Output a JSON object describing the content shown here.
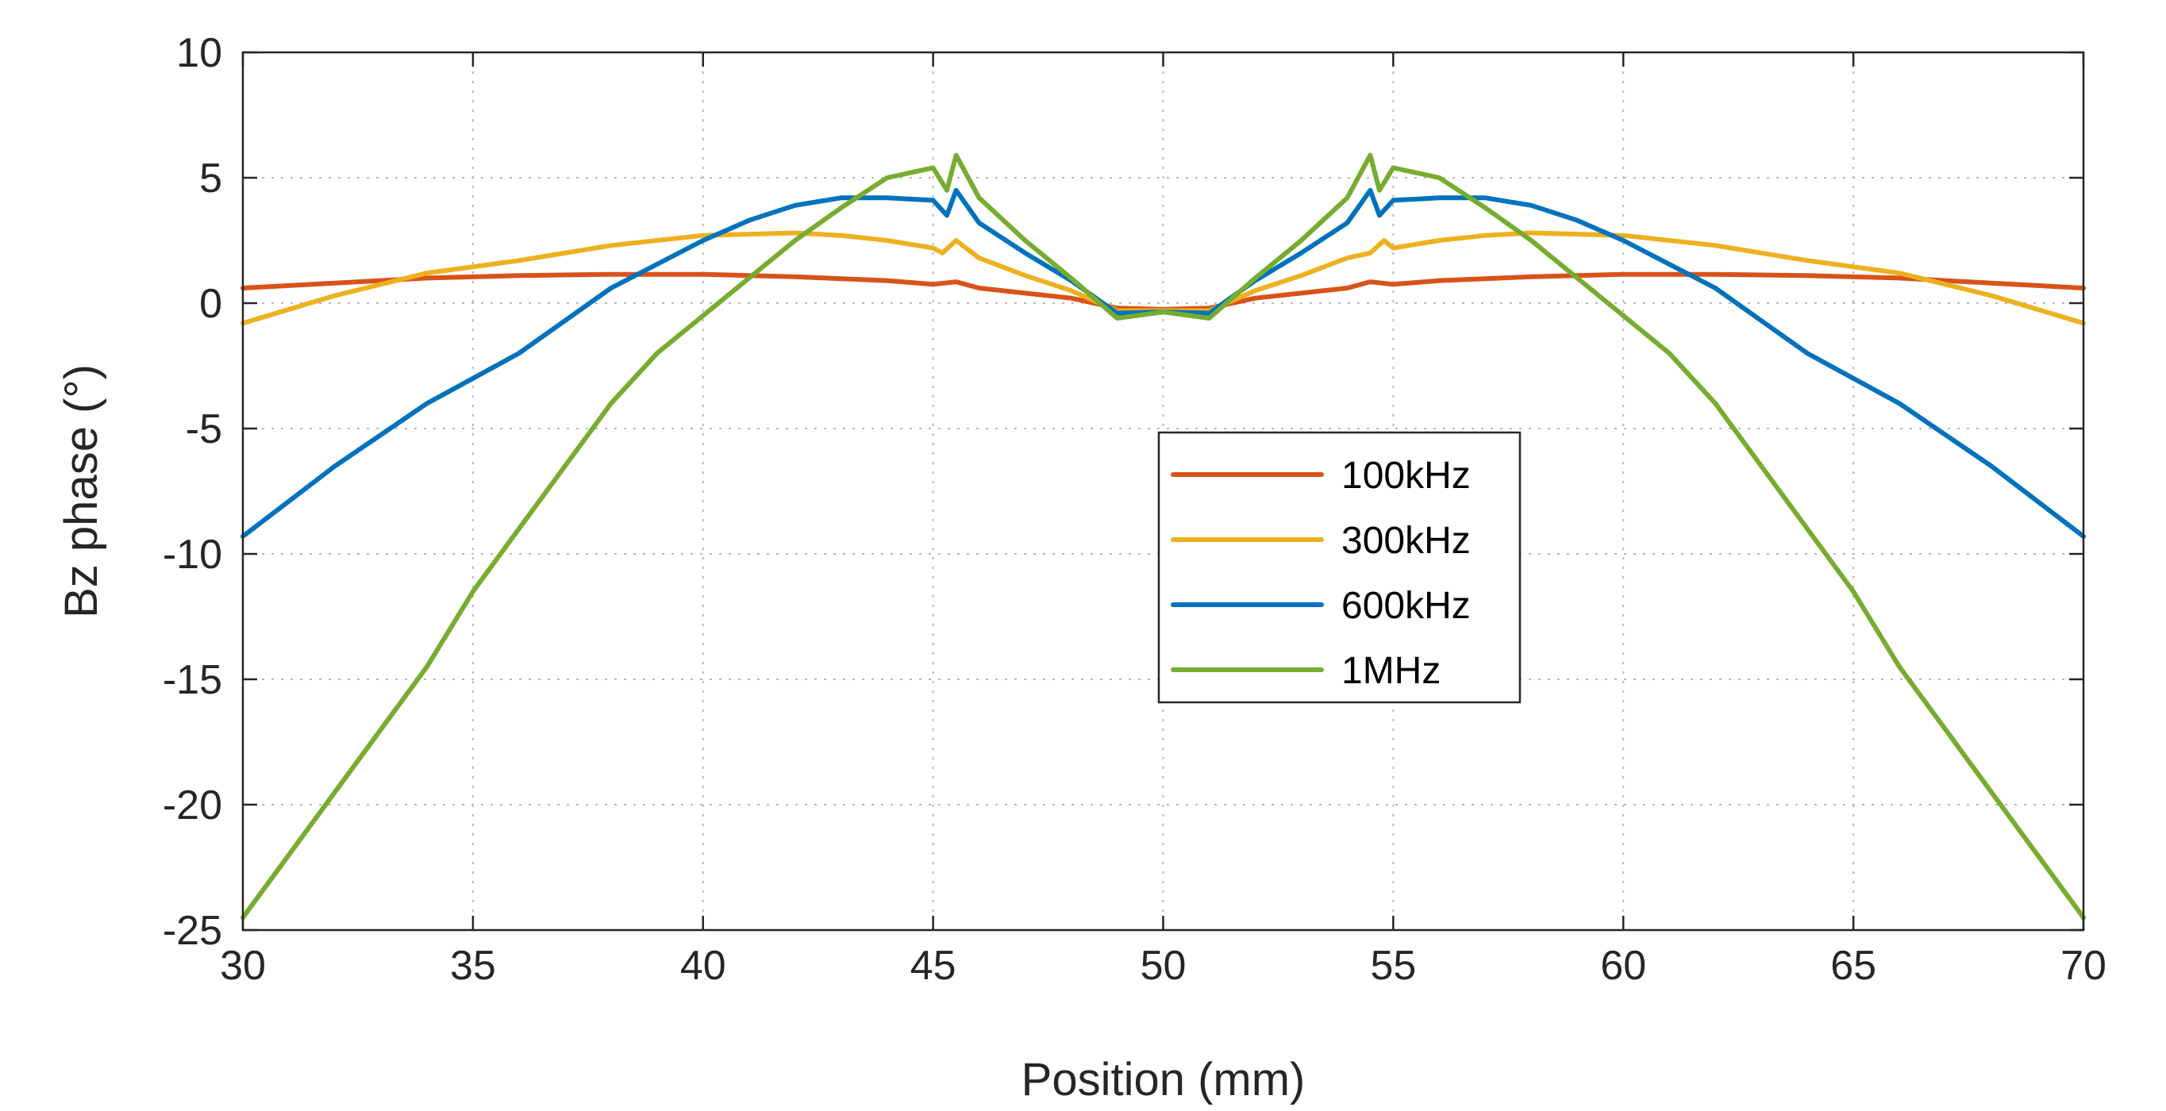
{
  "chart_data": {
    "type": "line",
    "title": "",
    "xlabel": "Position (mm)",
    "ylabel": "Bz phase (°)",
    "xlim": [
      30,
      70
    ],
    "ylim": [
      -25,
      10
    ],
    "xticks": [
      30,
      35,
      40,
      45,
      50,
      55,
      60,
      65,
      70
    ],
    "yticks": [
      10,
      5,
      0,
      -5,
      -10,
      -15,
      -20,
      -25
    ],
    "xtick_labels": [
      "30",
      "35",
      "40",
      "45",
      "50",
      "55",
      "60",
      "65",
      "70"
    ],
    "ytick_labels": [
      "10",
      "5",
      "0",
      "-5",
      "-10",
      "-15",
      "-20",
      "-25"
    ],
    "grid": true,
    "legend_position": "center",
    "series": [
      {
        "name": "100kHz",
        "color": "#D95319",
        "x": [
          30,
          32,
          34,
          36,
          38,
          40,
          42,
          44,
          45,
          45.5,
          46,
          47,
          48,
          49,
          50,
          51,
          52,
          53,
          54,
          54.5,
          55,
          56,
          58,
          60,
          62,
          64,
          66,
          68,
          70
        ],
        "y": [
          0.6,
          0.8,
          1.0,
          1.1,
          1.15,
          1.15,
          1.05,
          0.9,
          0.75,
          0.85,
          0.6,
          0.4,
          0.2,
          -0.2,
          -0.25,
          -0.2,
          0.2,
          0.4,
          0.6,
          0.85,
          0.75,
          0.9,
          1.05,
          1.15,
          1.15,
          1.1,
          1.0,
          0.8,
          0.6
        ]
      },
      {
        "name": "300kHz",
        "color": "#EDB120",
        "x": [
          30,
          32,
          34,
          36,
          38,
          40,
          42,
          43,
          44,
          45,
          45.2,
          45.5,
          46,
          47,
          48,
          49,
          50,
          51,
          52,
          53,
          54,
          54.5,
          54.8,
          55,
          56,
          57,
          58,
          60,
          62,
          64,
          66,
          68,
          70
        ],
        "y": [
          -0.8,
          0.3,
          1.2,
          1.7,
          2.3,
          2.7,
          2.8,
          2.7,
          2.5,
          2.2,
          2.0,
          2.5,
          1.8,
          1.1,
          0.5,
          -0.3,
          -0.3,
          -0.3,
          0.5,
          1.1,
          1.8,
          2.0,
          2.5,
          2.2,
          2.5,
          2.7,
          2.8,
          2.7,
          2.3,
          1.7,
          1.2,
          0.3,
          -0.8
        ]
      },
      {
        "name": "600kHz",
        "color": "#0072BD",
        "x": [
          30,
          32,
          34,
          36,
          38,
          40,
          41,
          42,
          43,
          44,
          45,
          45.3,
          45.5,
          46,
          47,
          48,
          49,
          50,
          51,
          52,
          53,
          54,
          54.5,
          54.7,
          55,
          56,
          57,
          58,
          59,
          60,
          62,
          64,
          66,
          68,
          70
        ],
        "y": [
          -9.3,
          -6.5,
          -4.0,
          -2.0,
          0.6,
          2.5,
          3.3,
          3.9,
          4.2,
          4.2,
          4.1,
          3.5,
          4.5,
          3.2,
          2.0,
          0.9,
          -0.4,
          -0.35,
          -0.4,
          0.9,
          2.0,
          3.2,
          4.5,
          3.5,
          4.1,
          4.2,
          4.2,
          3.9,
          3.3,
          2.5,
          0.6,
          -2.0,
          -4.0,
          -6.5,
          -9.3
        ]
      },
      {
        "name": "1MHz",
        "color": "#77AC30",
        "x": [
          30,
          31,
          32,
          33,
          34,
          35,
          36,
          37,
          38,
          39,
          40,
          41,
          42,
          43,
          44,
          45,
          45.3,
          45.5,
          46,
          47,
          48,
          49,
          50,
          51,
          52,
          53,
          54,
          54.5,
          54.7,
          55,
          56,
          57,
          58,
          59,
          60,
          61,
          62,
          63,
          64,
          65,
          66,
          67,
          68,
          69,
          70
        ],
        "y": [
          -24.5,
          -22.0,
          -19.5,
          -17.0,
          -14.5,
          -11.5,
          -9.0,
          -6.5,
          -4.0,
          -2.0,
          -0.5,
          1.0,
          2.5,
          3.8,
          5.0,
          5.4,
          4.5,
          5.9,
          4.2,
          2.5,
          1.0,
          -0.6,
          -0.35,
          -0.6,
          1.0,
          2.5,
          4.2,
          5.9,
          4.5,
          5.4,
          5.0,
          3.8,
          2.5,
          1.0,
          -0.5,
          -2.0,
          -4.0,
          -6.5,
          -9.0,
          -11.5,
          -14.5,
          -17.0,
          -19.5,
          -22.0,
          -24.5
        ]
      }
    ]
  }
}
